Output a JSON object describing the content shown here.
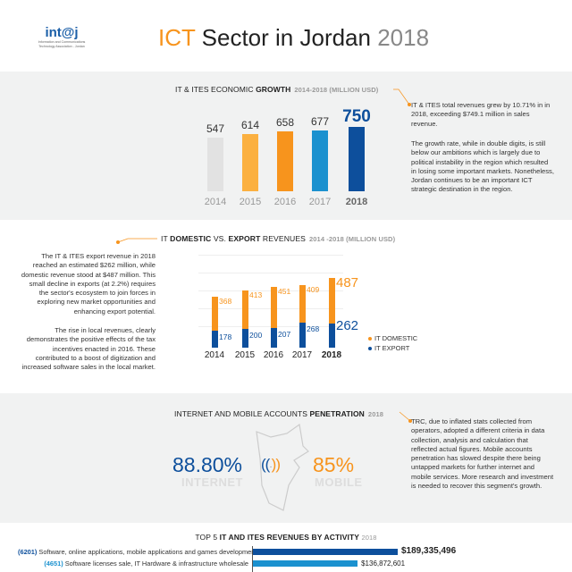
{
  "header": {
    "logo_text": "int@j",
    "logo_subtitle": "Information and Communications Technology Association - Jordan",
    "title_accent": "ICT",
    "title_main": "Sector in Jordan",
    "title_year": "2018"
  },
  "growth": {
    "heading_pre": "IT & ITES ECONOMIC ",
    "heading_bold": "GROWTH",
    "heading_sub": "2014-2018 (MILLION USD)",
    "note1": "IT & ITES total revenues grew by 10.71% in in 2018, exceeding $749.1 million in sales revenue.",
    "note2": "The growth rate, while in double digits, is still below our ambitions which is largely due to political instability in the region which resulted in losing some important markets. Nonetheless, Jordan continues to be an important ICT strategic destination in the region."
  },
  "domestic": {
    "heading_pre": "IT ",
    "heading_b1": "DOMESTIC",
    "heading_mid": " VS. ",
    "heading_b2": "EXPORT",
    "heading_post": " REVENUES",
    "heading_sub": "2014 -2018 (MILLION USD)",
    "note1": "The IT & ITES export revenue in 2018 reached an estimated $262 million, while domestic revenue stood at $487 million. This small decline in exports (at 2.2%) requires the sector's ecosystem to join forces in exploring new market opportunities and enhancing export potential.",
    "note2": "The rise in local revenues, clearly demonstrates the positive effects of the tax incentives enacted in 2016. These contributed to a boost of digitization and increased software sales in the local market."
  },
  "penetration": {
    "heading_pre": "INTERNET AND MOBILE ACCOUNTS ",
    "heading_bold": "PENETRATION",
    "heading_sub": "2018",
    "internet_value": "88.80%",
    "internet_label": "INTERNET",
    "mobile_value": "85%",
    "mobile_label": "MOBILE",
    "note": "TRC, due to inflated stats collected from operators, adopted a different criteria in data collection, analysis and calculation that reflected actual figures. Mobile accounts penetration has slowed despite there being untapped markets for further internet and mobile services. More research and investment is needed to recover this segment's growth.",
    "icon": "wifi-signal-icon"
  },
  "colors": {
    "blue": "#0d4f9c",
    "orange": "#f7941d",
    "light_blue": "#1b91cf",
    "yellow": "#fbb040",
    "gray": "#e2e2e2"
  },
  "chart_data": [
    {
      "type": "bar",
      "title": "IT & ITES ECONOMIC GROWTH 2014-2018 (MILLION USD)",
      "categories": [
        "2014",
        "2015",
        "2016",
        "2017",
        "2018"
      ],
      "values": [
        547,
        614,
        658,
        677,
        750
      ],
      "bar_colors": [
        "#e2e2e2",
        "#fbb040",
        "#f7941d",
        "#1b91cf",
        "#0d4f9c"
      ]
    },
    {
      "type": "bar",
      "stacked": true,
      "title": "IT DOMESTIC VS. EXPORT REVENUES 2014 -2018 (MILLION USD)",
      "categories": [
        "2014",
        "2015",
        "2016",
        "2017",
        "2018"
      ],
      "series": [
        {
          "name": "IT EXPORT",
          "values": [
            178,
            200,
            207,
            268,
            262
          ],
          "color": "#0d4f9c"
        },
        {
          "name": "IT DOMESTIC",
          "values": [
            368,
            413,
            451,
            409,
            487
          ],
          "color": "#f7941d"
        }
      ],
      "legend": "right",
      "grid": true
    },
    {
      "type": "bar",
      "orientation": "horizontal",
      "title": "TOP 5 IT AND ITES REVENUES BY ACTIVITY 2018",
      "title_pre": "TOP 5 ",
      "title_bold": "IT AND ITES REVENUES BY ACTIVITY",
      "title_year": "2018",
      "items": [
        {
          "code": "(6201)",
          "label": "Software, online applications, mobile applications and games development",
          "value": 189335496,
          "value_text": "$189,335,496",
          "color": "#0d4f9c"
        },
        {
          "code": "(4651)",
          "label": "Software licenses sale, IT Hardware & infrastructure wholesale",
          "value": 136872601,
          "value_text": "$136,872,601",
          "color": "#1b91cf"
        }
      ]
    }
  ]
}
